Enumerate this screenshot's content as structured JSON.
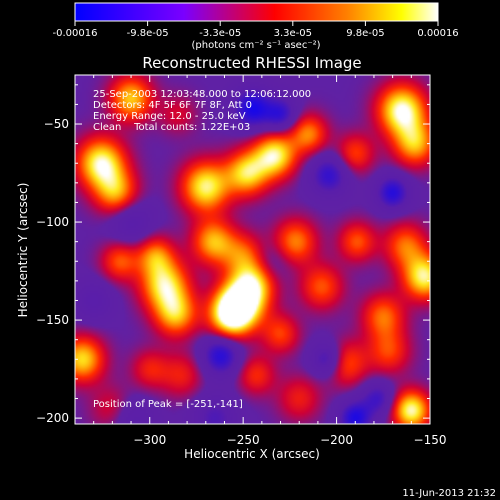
{
  "colorbar": {
    "tick_labels": [
      "-0.00016",
      "-9.8e-05",
      "-3.3e-05",
      "3.3e-05",
      "9.8e-05",
      "0.00016"
    ],
    "units_label": "(photons cm⁻² s⁻¹ asec⁻²)",
    "range": [
      -0.00016,
      0.00016
    ],
    "colors": [
      "#0000ff",
      "#7a00ff",
      "#ff0000",
      "#ff8000",
      "#ffff00",
      "#ffffff"
    ]
  },
  "footer": {
    "timestamp": "11-Jun-2013 21:32"
  },
  "chart_data": {
    "type": "heatmap",
    "title": "Reconstructed RHESSI Image",
    "xlabel": "Heliocentric X (arcsec)",
    "ylabel": "Heliocentric Y (arcsec)",
    "xlim": [
      -340,
      -150
    ],
    "ylim": [
      -203,
      -25
    ],
    "xticks": [
      -300,
      -250,
      -200,
      -150
    ],
    "yticks": [
      -50,
      -100,
      -150,
      -200
    ],
    "annotations": [
      "25-Sep-2003 12:03:48.000 to 12:06:12.000",
      "Detectors: 4F 5F 6F 7F 8F, Att 0",
      "Energy Range: 12.0 - 25.0 keV",
      "Clean    Total counts: 1.22E+03"
    ],
    "peak_label": "Position of Peak = [-251,-141]",
    "peak": {
      "x": -251,
      "y": -141
    },
    "blobs": [
      {
        "x": -251,
        "y": -141,
        "v": 1.0,
        "s": 9
      },
      {
        "x": -257,
        "y": -148,
        "v": 0.85,
        "s": 8
      },
      {
        "x": -244,
        "y": -131,
        "v": 0.6,
        "s": 8
      },
      {
        "x": -292,
        "y": -132,
        "v": 0.85,
        "s": 9
      },
      {
        "x": -286,
        "y": -147,
        "v": 0.7,
        "s": 8
      },
      {
        "x": -297,
        "y": -117,
        "v": 0.55,
        "s": 7
      },
      {
        "x": -326,
        "y": -70,
        "v": 0.95,
        "s": 9
      },
      {
        "x": -318,
        "y": -85,
        "v": 0.65,
        "s": 8
      },
      {
        "x": -270,
        "y": -82,
        "v": 0.9,
        "s": 9
      },
      {
        "x": -248,
        "y": -75,
        "v": 0.8,
        "s": 8
      },
      {
        "x": -233,
        "y": -66,
        "v": 0.9,
        "s": 8
      },
      {
        "x": -215,
        "y": -55,
        "v": 0.6,
        "s": 7
      },
      {
        "x": -165,
        "y": -43,
        "v": 1.0,
        "s": 9
      },
      {
        "x": -158,
        "y": -60,
        "v": 0.7,
        "s": 8
      },
      {
        "x": -310,
        "y": -37,
        "v": 0.75,
        "s": 8
      },
      {
        "x": -266,
        "y": -110,
        "v": 0.7,
        "s": 8
      },
      {
        "x": -250,
        "y": -117,
        "v": 0.5,
        "s": 8
      },
      {
        "x": -222,
        "y": -110,
        "v": 0.6,
        "s": 8
      },
      {
        "x": -208,
        "y": -133,
        "v": 0.5,
        "s": 8
      },
      {
        "x": -189,
        "y": -110,
        "v": 0.5,
        "s": 7
      },
      {
        "x": -153,
        "y": -128,
        "v": 0.9,
        "s": 8
      },
      {
        "x": -163,
        "y": -112,
        "v": 0.55,
        "s": 8
      },
      {
        "x": -175,
        "y": -148,
        "v": 0.55,
        "s": 8
      },
      {
        "x": -172,
        "y": -166,
        "v": 0.45,
        "s": 8
      },
      {
        "x": -336,
        "y": -170,
        "v": 0.8,
        "s": 8
      },
      {
        "x": -316,
        "y": -120,
        "v": 0.5,
        "s": 7
      },
      {
        "x": -190,
        "y": -65,
        "v": 0.45,
        "s": 7
      },
      {
        "x": -195,
        "y": -172,
        "v": 0.5,
        "s": 8
      },
      {
        "x": -160,
        "y": -196,
        "v": 0.95,
        "s": 7
      },
      {
        "x": -230,
        "y": -157,
        "v": 0.45,
        "s": 7
      },
      {
        "x": -283,
        "y": -178,
        "v": 0.35,
        "s": 8
      },
      {
        "x": -220,
        "y": -190,
        "v": 0.35,
        "s": 8
      },
      {
        "x": -243,
        "y": -178,
        "v": 0.4,
        "s": 7
      },
      {
        "x": -320,
        "y": -195,
        "v": 0.3,
        "s": 8
      },
      {
        "x": -300,
        "y": -175,
        "v": 0.35,
        "s": 7
      },
      {
        "x": -285,
        "y": -45,
        "v": 0.25,
        "s": 7
      },
      {
        "x": -245,
        "y": -42,
        "v": -0.8,
        "s": 7
      },
      {
        "x": -230,
        "y": -45,
        "v": -0.6,
        "s": 6
      },
      {
        "x": -204,
        "y": -76,
        "v": -0.6,
        "s": 7
      },
      {
        "x": -310,
        "y": -100,
        "v": -0.35,
        "s": 8
      },
      {
        "x": -170,
        "y": -85,
        "v": -0.7,
        "s": 6
      },
      {
        "x": -262,
        "y": -168,
        "v": -0.7,
        "s": 7
      },
      {
        "x": -265,
        "y": -200,
        "v": -0.4,
        "s": 8
      },
      {
        "x": -205,
        "y": -170,
        "v": -0.55,
        "s": 6
      },
      {
        "x": -190,
        "y": -200,
        "v": -0.75,
        "s": 6
      },
      {
        "x": -178,
        "y": -190,
        "v": -0.5,
        "s": 6
      },
      {
        "x": -310,
        "y": -200,
        "v": -0.3,
        "s": 8
      },
      {
        "x": -330,
        "y": -140,
        "v": -0.3,
        "s": 7
      },
      {
        "x": -235,
        "y": -120,
        "v": -0.2,
        "s": 7
      }
    ]
  }
}
